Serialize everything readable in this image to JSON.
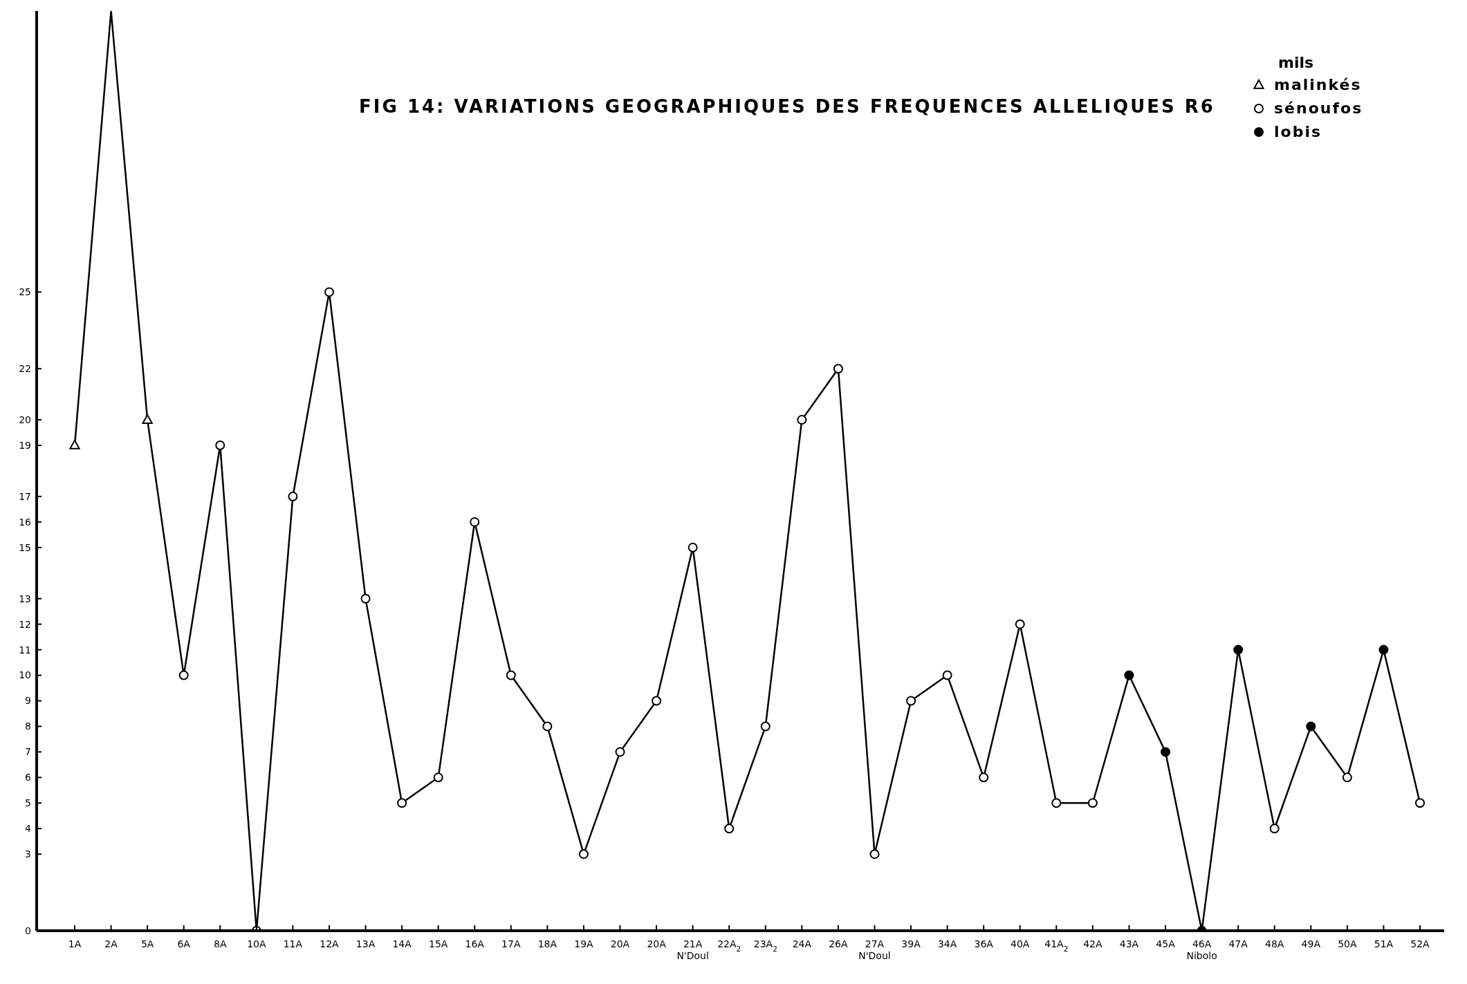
{
  "chart_data": {
    "type": "line",
    "title": "FIG 14: VARIATIONS GEOGRAPHIQUES DES FREQUENCES ALLELIQUES R6",
    "legend_title": "mils",
    "legend": "top right",
    "grid": false,
    "categories": [
      "1A",
      "2A",
      "5A",
      "6A",
      "8A",
      "10A",
      "11A",
      "12A",
      "13A",
      "14A",
      "15A",
      "16A",
      "17A",
      "18A",
      "19A",
      "20A",
      "20A",
      "21A N'Doul",
      "22A$_{2}$",
      "23A$_{2}$",
      "24A",
      "26A",
      "27A N'Doul",
      "39A",
      "34A",
      "36A",
      "40A",
      "41A$_{2}$",
      "42A",
      "43A",
      "45A",
      "46A Nibolo",
      "47A",
      "48A",
      "49A",
      "50A",
      "51A",
      "52A"
    ],
    "ylim": [
      0,
      36
    ],
    "yticks": [
      0,
      3,
      4,
      5,
      6,
      7,
      8,
      9,
      10,
      11,
      12,
      13,
      15,
      16,
      17,
      19,
      20,
      22,
      25
    ],
    "series": [
      {
        "color": "#000000",
        "marker": "none",
        "line_style": "solid",
        "values": [
          19,
          36,
          20,
          10,
          19,
          0,
          17,
          25,
          13,
          5,
          6,
          16,
          10,
          8,
          3,
          7,
          9,
          15,
          4,
          8,
          20,
          22,
          3,
          9,
          10,
          6,
          12,
          5,
          5,
          10,
          7,
          0,
          11,
          4,
          8,
          6,
          11,
          5
        ]
      },
      {
        "type": "scatter",
        "name": "malinkés",
        "color": "#ffffff",
        "marker": "triangle",
        "values": [
          19,
          null,
          20,
          null,
          null,
          null,
          null,
          null,
          null,
          null,
          null,
          null,
          null,
          null,
          null,
          null,
          null,
          null,
          null,
          null,
          null,
          null,
          null,
          null,
          null,
          null,
          null,
          null,
          null,
          null,
          null,
          null,
          null,
          null,
          null,
          null,
          null,
          null
        ]
      },
      {
        "type": "scatter",
        "name": "sénoufos",
        "color": "#ffffff",
        "marker": "circle",
        "values": [
          null,
          null,
          null,
          10,
          19,
          0,
          17,
          25,
          13,
          5,
          6,
          16,
          10,
          8,
          3,
          7,
          9,
          15,
          4,
          8,
          20,
          22,
          3,
          9,
          10,
          6,
          12,
          5,
          5,
          null,
          null,
          null,
          null,
          4,
          null,
          6,
          null,
          5
        ]
      },
      {
        "type": "scatter",
        "name": "lobis",
        "color": "#000000",
        "marker": "circle",
        "values": [
          null,
          null,
          null,
          null,
          null,
          null,
          null,
          null,
          null,
          null,
          null,
          null,
          null,
          null,
          null,
          null,
          null,
          null,
          null,
          null,
          null,
          null,
          null,
          null,
          null,
          null,
          null,
          null,
          null,
          10,
          7,
          0,
          11,
          null,
          8,
          null,
          11,
          null
        ]
      }
    ]
  }
}
